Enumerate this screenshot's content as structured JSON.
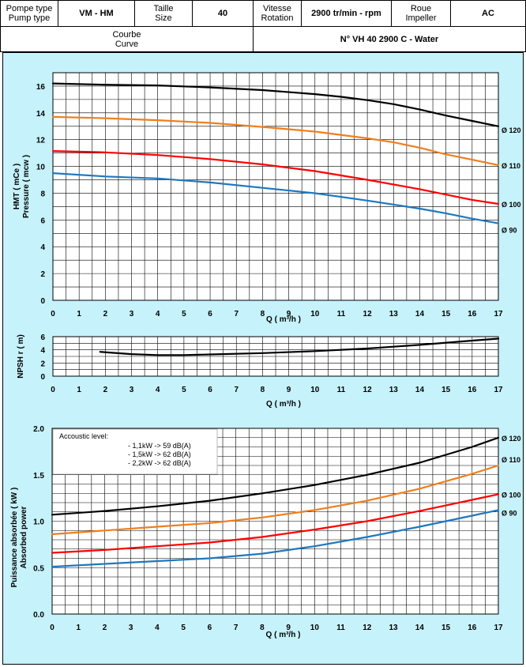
{
  "header": {
    "pump_type_label_fr": "Pompe type",
    "pump_type_label_en": "Pump type",
    "pump_type_value": "VM - HM",
    "size_label_fr": "Taille",
    "size_label_en": "Size",
    "size_value": "40",
    "rotation_label_fr": "Vitesse",
    "rotation_label_en": "Rotation",
    "rotation_value": "2900 tr/min - rpm",
    "impeller_label_fr": "Roue",
    "impeller_label_en": "Impeller",
    "impeller_value": "AC",
    "curve_label_fr": "Courbe",
    "curve_label_en": "Curve",
    "curve_value": "N° VH 40 2900 C - Water"
  },
  "colors": {
    "d120": "#000000",
    "d110": "#ee7f1e",
    "d100": "#ff0000",
    "d90": "#1e78c0",
    "background": "#c6f2fb"
  },
  "chart_data": [
    {
      "type": "line",
      "title": "",
      "ylabel_fr": "HMT ( mCe )",
      "ylabel_en": "Pressure ( mcw )",
      "xlabel": "Q ( m³/h )",
      "xlim": [
        0,
        17
      ],
      "ylim": [
        0,
        17
      ],
      "xticks": [
        0,
        1,
        2,
        3,
        4,
        5,
        6,
        7,
        8,
        9,
        10,
        11,
        12,
        13,
        14,
        15,
        16,
        17
      ],
      "yticks": [
        0,
        2,
        4,
        6,
        8,
        10,
        12,
        14,
        16
      ],
      "grid": true,
      "series": [
        {
          "name": "Ø 120",
          "color": "#000000",
          "x": [
            0,
            2,
            4,
            6,
            8,
            10,
            11,
            12,
            13,
            14,
            15,
            16,
            17
          ],
          "y": [
            16.2,
            16.1,
            16.05,
            15.9,
            15.7,
            15.4,
            15.2,
            14.95,
            14.65,
            14.25,
            13.8,
            13.4,
            13.0
          ]
        },
        {
          "name": "Ø 110",
          "color": "#ee7f1e",
          "x": [
            0,
            2,
            4,
            6,
            8,
            10,
            12,
            13,
            14,
            15,
            16,
            17
          ],
          "y": [
            13.7,
            13.6,
            13.45,
            13.25,
            12.95,
            12.6,
            12.1,
            11.8,
            11.4,
            10.9,
            10.5,
            10.1
          ]
        },
        {
          "name": "Ø 100",
          "color": "#ff0000",
          "x": [
            0,
            2,
            4,
            6,
            8,
            10,
            12,
            14,
            15,
            16,
            17
          ],
          "y": [
            11.15,
            11.05,
            10.85,
            10.55,
            10.15,
            9.65,
            9.0,
            8.3,
            7.9,
            7.5,
            7.2
          ]
        },
        {
          "name": "Ø 90",
          "color": "#1e78c0",
          "x": [
            0,
            2,
            4,
            6,
            8,
            10,
            12,
            14,
            15,
            16,
            17
          ],
          "y": [
            9.5,
            9.25,
            9.1,
            8.8,
            8.4,
            8.0,
            7.45,
            6.85,
            6.5,
            6.1,
            5.75
          ]
        }
      ]
    },
    {
      "type": "line",
      "title": "",
      "ylabel": "NPSH r ( m)",
      "xlabel": "Q ( m³/h )",
      "xlim": [
        0,
        17
      ],
      "ylim": [
        0,
        6
      ],
      "xticks": [
        0,
        1,
        2,
        3,
        4,
        5,
        6,
        7,
        8,
        9,
        10,
        11,
        12,
        13,
        14,
        15,
        16,
        17
      ],
      "yticks": [
        0,
        2,
        4,
        6
      ],
      "grid": true,
      "series": [
        {
          "color": "#000000",
          "x": [
            1.8,
            3,
            4,
            5,
            6,
            8,
            10,
            12,
            14,
            16,
            17
          ],
          "y": [
            3.7,
            3.35,
            3.2,
            3.2,
            3.3,
            3.5,
            3.8,
            4.2,
            4.75,
            5.4,
            5.7
          ]
        }
      ]
    },
    {
      "type": "line",
      "title": "",
      "ylabel_fr": "Puissance absorbée ( kW )",
      "ylabel_en": "Absorbed power",
      "xlabel": "Q ( m³/h )",
      "xlim": [
        0,
        17
      ],
      "ylim": [
        0,
        2.0
      ],
      "xticks": [
        0,
        1,
        2,
        3,
        4,
        5,
        6,
        7,
        8,
        9,
        10,
        11,
        12,
        13,
        14,
        15,
        16,
        17
      ],
      "yticks": [
        0.0,
        0.5,
        1.0,
        1.5,
        2.0
      ],
      "ytick_labels": [
        "0.0",
        "0.5",
        "1.0",
        "1.5",
        "2.0"
      ],
      "grid": true,
      "series": [
        {
          "name": "Ø 120",
          "color": "#000000",
          "x": [
            0,
            2,
            4,
            6,
            8,
            10,
            12,
            14,
            16,
            17
          ],
          "y": [
            1.07,
            1.11,
            1.16,
            1.22,
            1.3,
            1.39,
            1.5,
            1.63,
            1.8,
            1.9
          ]
        },
        {
          "name": "Ø 110",
          "color": "#ee7f1e",
          "x": [
            0,
            2,
            4,
            6,
            8,
            10,
            12,
            14,
            16,
            17
          ],
          "y": [
            0.86,
            0.9,
            0.94,
            0.98,
            1.04,
            1.12,
            1.22,
            1.35,
            1.51,
            1.6
          ]
        },
        {
          "name": "Ø 100",
          "color": "#ff0000",
          "x": [
            0,
            2,
            4,
            6,
            8,
            10,
            12,
            14,
            16,
            17
          ],
          "y": [
            0.66,
            0.69,
            0.73,
            0.77,
            0.83,
            0.91,
            1.0,
            1.11,
            1.23,
            1.29
          ]
        },
        {
          "name": "Ø 90",
          "color": "#1e78c0",
          "x": [
            0,
            2,
            4,
            6,
            8,
            10,
            12,
            14,
            16,
            17
          ],
          "y": [
            0.51,
            0.54,
            0.57,
            0.6,
            0.65,
            0.73,
            0.83,
            0.94,
            1.06,
            1.12
          ]
        }
      ],
      "annotation": {
        "title": "Accoustic level:",
        "lines": [
          "- 1,1kW   ->   59 dB(A)",
          "- 1,5kW   ->   62 dB(A)",
          "- 2,2kW   ->   62 dB(A)"
        ]
      }
    }
  ]
}
